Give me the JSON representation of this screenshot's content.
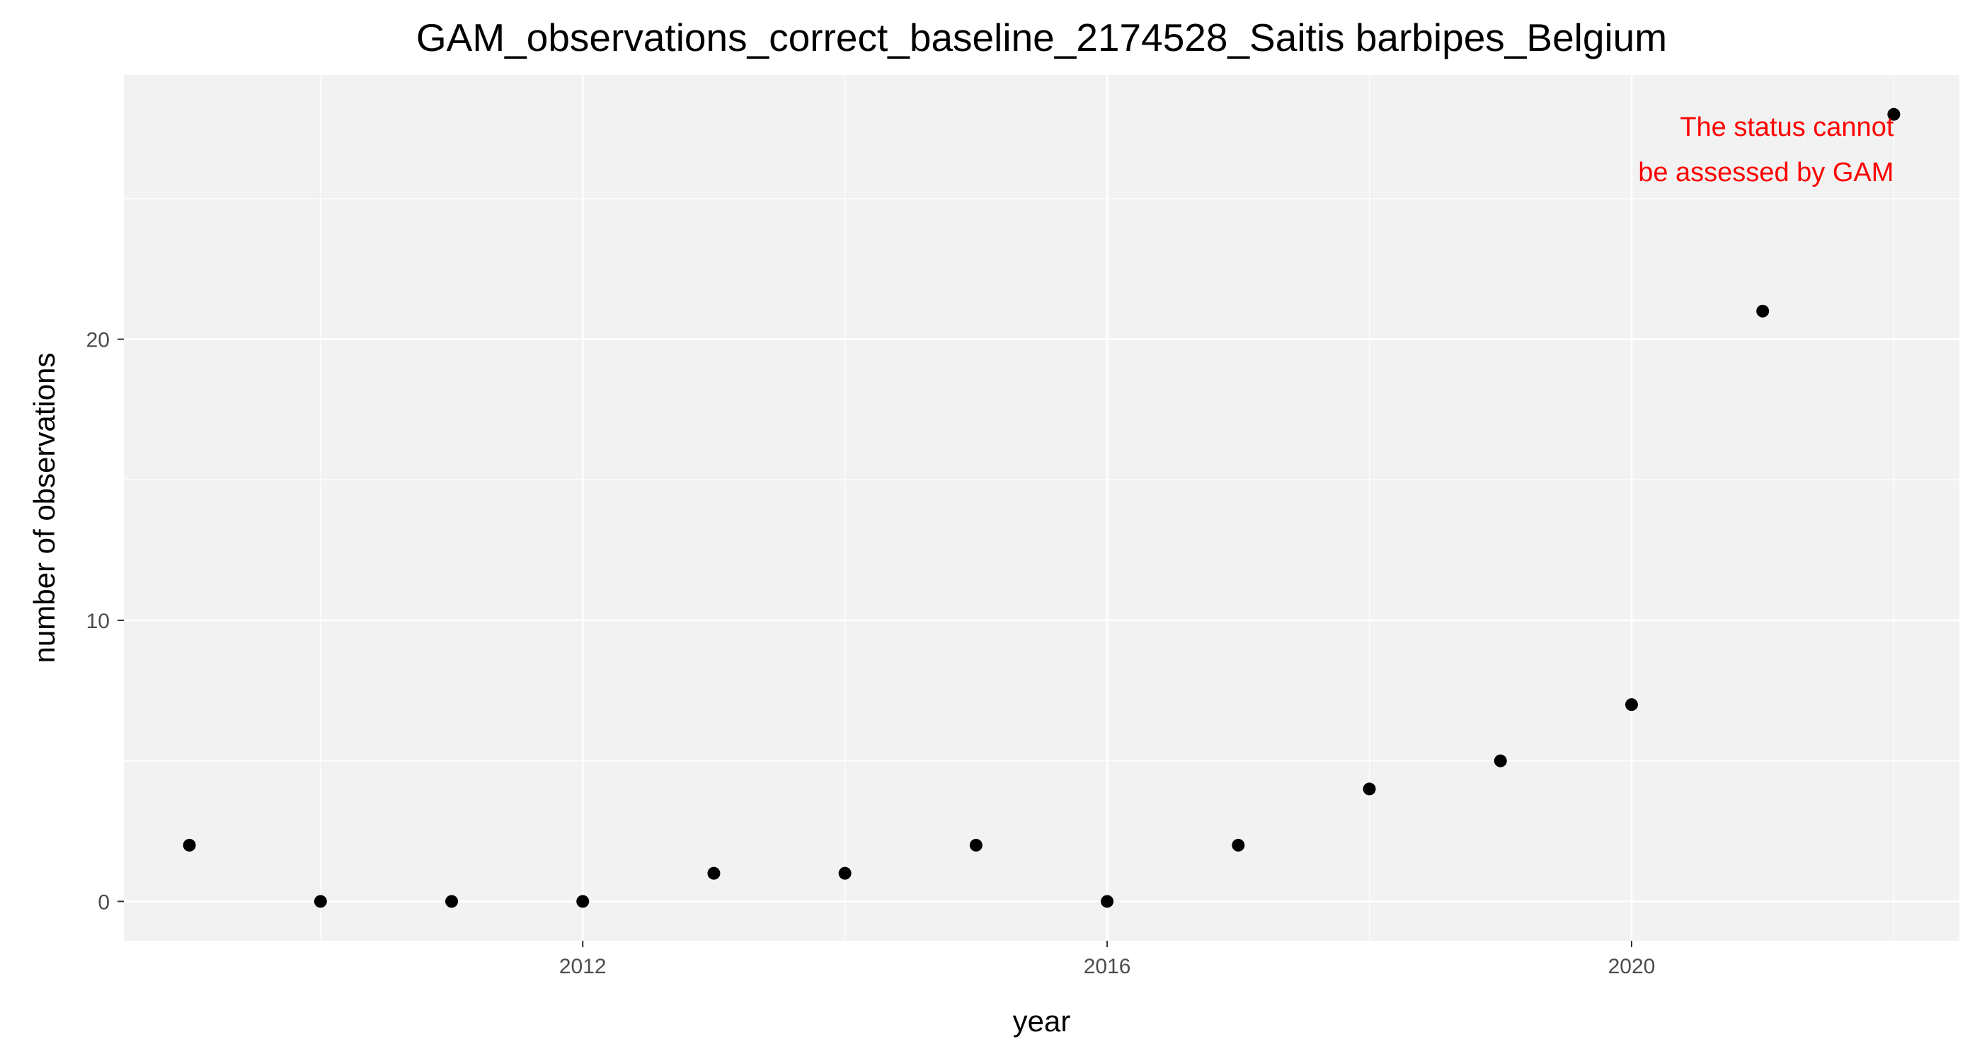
{
  "chart_data": {
    "type": "scatter",
    "title": "GAM_observations_correct_baseline_2174528_Saitis barbipes_Belgium",
    "xlabel": "year",
    "ylabel": "number of observations",
    "xlim": [
      2008.5,
      2022.5
    ],
    "ylim": [
      -1.4,
      29.4
    ],
    "x_ticks": [
      2012,
      2016,
      2020
    ],
    "y_ticks": [
      0,
      10,
      20
    ],
    "grid": true,
    "legend": "none",
    "points": [
      {
        "x": 2009,
        "y": 2
      },
      {
        "x": 2010,
        "y": 0
      },
      {
        "x": 2011,
        "y": 0
      },
      {
        "x": 2012,
        "y": 0
      },
      {
        "x": 2013,
        "y": 1
      },
      {
        "x": 2014,
        "y": 1
      },
      {
        "x": 2015,
        "y": 2
      },
      {
        "x": 2016,
        "y": 0
      },
      {
        "x": 2017,
        "y": 2
      },
      {
        "x": 2018,
        "y": 4
      },
      {
        "x": 2019,
        "y": 5
      },
      {
        "x": 2020,
        "y": 7
      },
      {
        "x": 2021,
        "y": 21
      },
      {
        "x": 2022,
        "y": 28
      }
    ],
    "annotation": {
      "lines": [
        "The status cannot",
        "be assessed by GAM"
      ],
      "color": "#FF0000"
    },
    "colors": {
      "panel_background": "#F2F2F2",
      "grid_major": "#FFFFFF",
      "point": "#000000"
    }
  }
}
